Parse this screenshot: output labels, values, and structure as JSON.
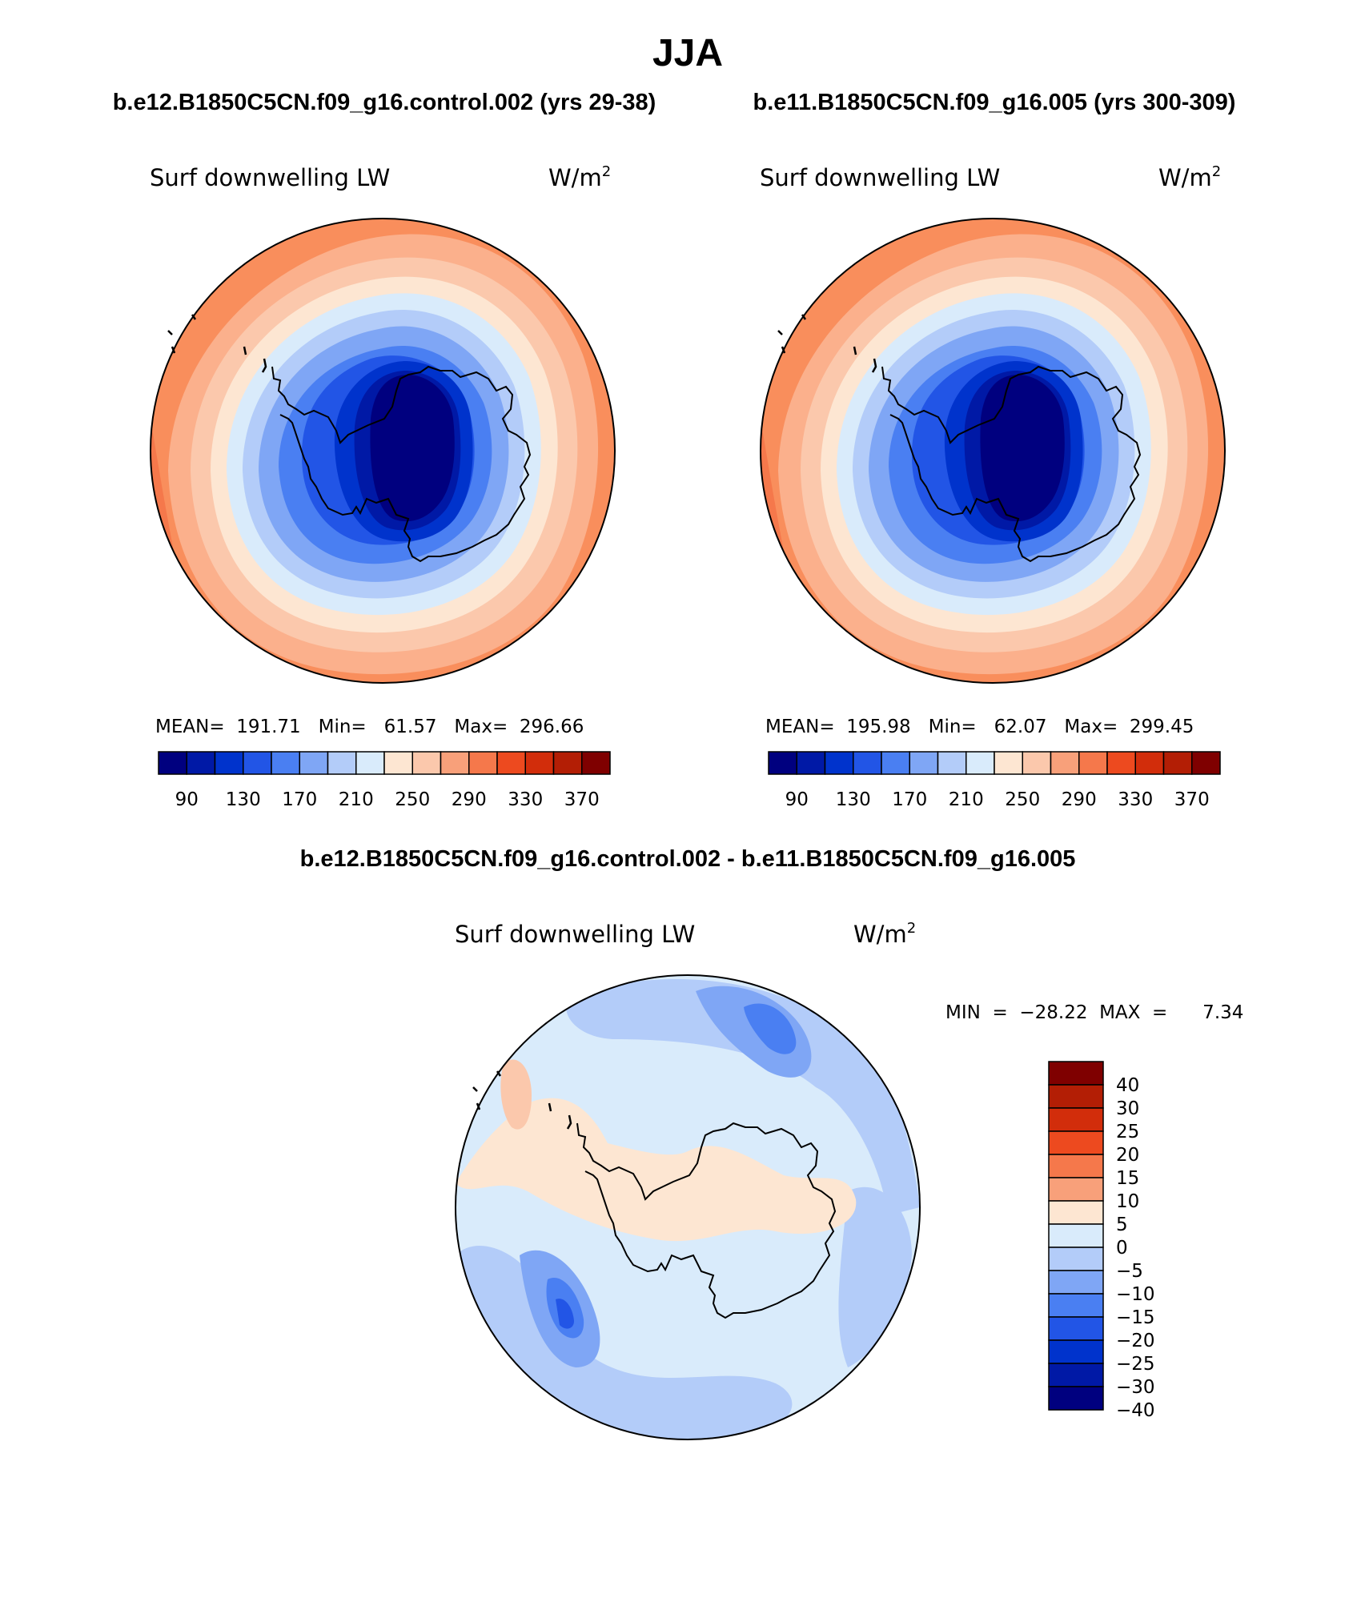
{
  "page": {
    "season_title": "JJA",
    "left_case_title": "b.e12.B1850C5CN.f09_g16.control.002 (yrs 29-38)",
    "right_case_title": "b.e11.B1850C5CN.f09_g16.005 (yrs 300-309)",
    "diff_title": "b.e12.B1850C5CN.f09_g16.control.002 - b.e11.B1850C5CN.f09_g16.005"
  },
  "panels": {
    "left": {
      "variable": "Surf downwelling LW",
      "units": "W/m",
      "units_sup": "2",
      "stats": "MEAN=  191.71   Min=   61.57   Max=  296.66"
    },
    "right": {
      "variable": "Surf downwelling LW",
      "units": "W/m",
      "units_sup": "2",
      "stats": "MEAN=  195.98   Min=   62.07   Max=  299.45"
    },
    "diff": {
      "variable": "Surf downwelling LW",
      "units": "W/m",
      "units_sup": "2",
      "stats": "MIN  =  −28.22  MAX  =      7.34"
    }
  },
  "colorbars": {
    "abs": {
      "colors": [
        "#00007f",
        "#0019a6",
        "#0033cc",
        "#2255e6",
        "#4a7ff2",
        "#7fa6f5",
        "#b3ccf9",
        "#d9ebfb",
        "#fde6d2",
        "#fbc8ac",
        "#f8a07a",
        "#f5784b",
        "#ed4a1f",
        "#d22d0b",
        "#b31e05",
        "#7f0000"
      ],
      "tick_labels": [
        "90",
        "130",
        "170",
        "210",
        "250",
        "290",
        "330",
        "370"
      ]
    },
    "diff": {
      "colors": [
        "#7f0000",
        "#b31e05",
        "#d22d0b",
        "#ed4a1f",
        "#f5784b",
        "#f8a07a",
        "#fde6d2",
        "#d9ebfb",
        "#b3ccf9",
        "#7fa6f5",
        "#4a7ff2",
        "#2255e6",
        "#0033cc",
        "#0019a6",
        "#00007f"
      ],
      "tick_labels": [
        "40",
        "30",
        "25",
        "20",
        "15",
        "10",
        "5",
        "0",
        "−5",
        "−10",
        "−15",
        "−20",
        "−25",
        "−30",
        "−40"
      ]
    }
  }
}
